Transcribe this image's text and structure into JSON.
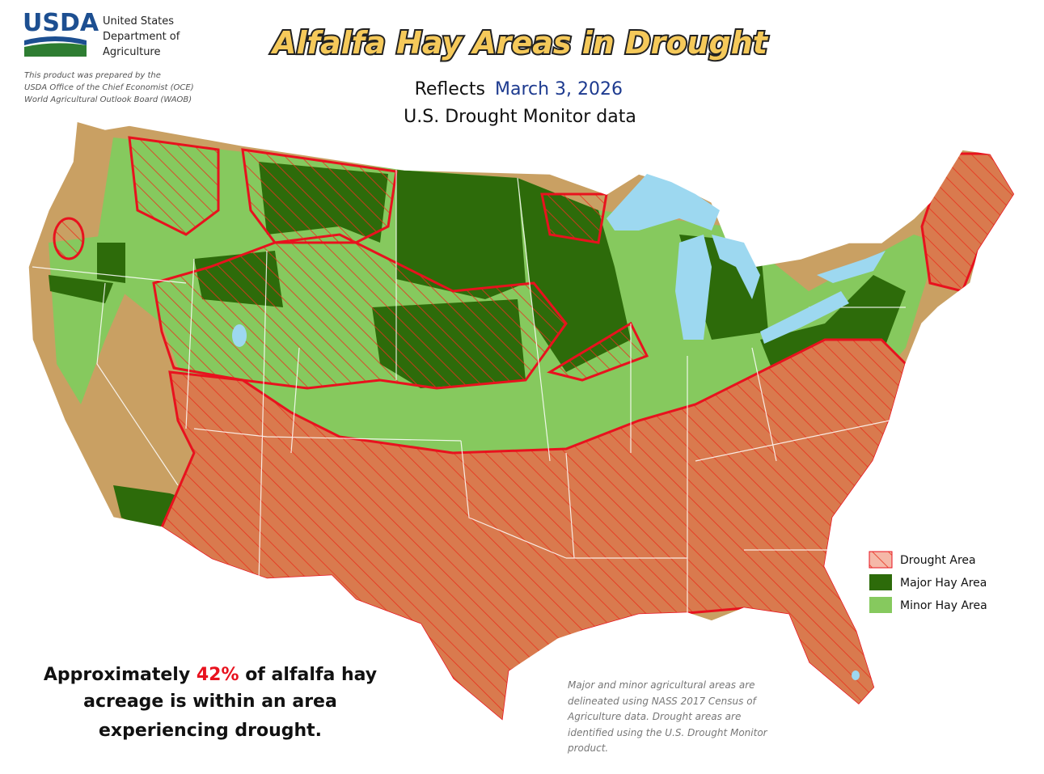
{
  "header": {
    "agency": "USDA",
    "department": [
      "United States",
      "Department of",
      "Agriculture"
    ],
    "credit": [
      "This product was prepared by the",
      "USDA Office of the Chief Economist (OCE)",
      "World Agricultural Outlook Board (WAOB)"
    ]
  },
  "title": "Alfalfa Hay Areas in Drought",
  "subtitle": {
    "prefix": "Reflects",
    "date": "March 3, 2026",
    "source": "U.S. Drought Monitor data"
  },
  "legend": [
    {
      "label": "Drought Area"
    },
    {
      "label": "Major Hay Area"
    },
    {
      "label": "Minor Hay Area"
    }
  ],
  "summary": {
    "lines": [
      "Approximately",
      "42%",
      "of alfalfa hay",
      "acreage is within an area",
      "experiencing drought."
    ]
  },
  "note": [
    "Major and minor agricultural areas are",
    "delineated using NASS 2017 Census of",
    "Agriculture data.  Drought areas are",
    "identified using the U.S. Drought Monitor",
    "product."
  ]
}
